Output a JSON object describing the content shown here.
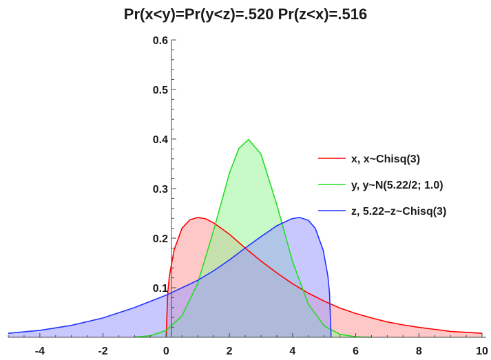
{
  "chart_data": {
    "type": "area",
    "title": "Pr(x<y)=Pr(y<z)=.520 Pr(z<x)=.516",
    "xlabel": "",
    "ylabel": "",
    "xlim": [
      -5,
      10
    ],
    "ylim": [
      0,
      0.6
    ],
    "x_ticks": [
      "-4",
      "-2",
      "0",
      "2",
      "4",
      "6",
      "8",
      "10"
    ],
    "y_ticks": [
      "0.1",
      "0.2",
      "0.3",
      "0.4",
      "0.5",
      "0.6"
    ],
    "legend_position": "right",
    "series": [
      {
        "name": "x, x~Chisq(3)",
        "color": "#ff0000",
        "fill": "#ff9a9a",
        "x": [
          0,
          0.05,
          0.1,
          0.25,
          0.5,
          0.75,
          1.0,
          1.25,
          1.5,
          2.0,
          2.5,
          3.0,
          3.5,
          4.0,
          4.5,
          5.0,
          5.5,
          6.0,
          6.5,
          7.0,
          7.5,
          8.0,
          8.5,
          9.0,
          9.5,
          10.0
        ],
        "y": [
          0,
          0.089,
          0.123,
          0.176,
          0.22,
          0.237,
          0.242,
          0.239,
          0.231,
          0.208,
          0.18,
          0.154,
          0.13,
          0.108,
          0.089,
          0.073,
          0.059,
          0.048,
          0.039,
          0.031,
          0.025,
          0.02,
          0.016,
          0.012,
          0.01,
          0.008
        ]
      },
      {
        "name": "y, y~N(5.22/2; 1.0)",
        "color": "#22dd22",
        "fill": "#99f599",
        "x": [
          -1.0,
          -0.5,
          0,
          0.5,
          1.0,
          1.5,
          2.0,
          2.3,
          2.61,
          3.0,
          3.5,
          4.0,
          4.5,
          5.0,
          5.5,
          6.0,
          6.5
        ],
        "y": [
          0.0006,
          0.003,
          0.014,
          0.043,
          0.109,
          0.215,
          0.331,
          0.381,
          0.399,
          0.37,
          0.268,
          0.153,
          0.067,
          0.023,
          0.006,
          0.001,
          0.0002
        ]
      },
      {
        "name": "z, 5.22–z~Chisq(3)",
        "color": "#2233ff",
        "fill": "#9a9aff",
        "x": [
          -5.0,
          -4.0,
          -3.0,
          -2.0,
          -1.0,
          0,
          0.5,
          1.0,
          1.5,
          2.0,
          2.5,
          3.0,
          3.5,
          3.97,
          4.22,
          4.5,
          4.72,
          4.97,
          5.12,
          5.17,
          5.22
        ],
        "y": [
          0.008,
          0.014,
          0.024,
          0.039,
          0.06,
          0.085,
          0.1,
          0.115,
          0.134,
          0.156,
          0.18,
          0.203,
          0.225,
          0.239,
          0.242,
          0.236,
          0.22,
          0.176,
          0.123,
          0.089,
          0
        ]
      }
    ]
  }
}
